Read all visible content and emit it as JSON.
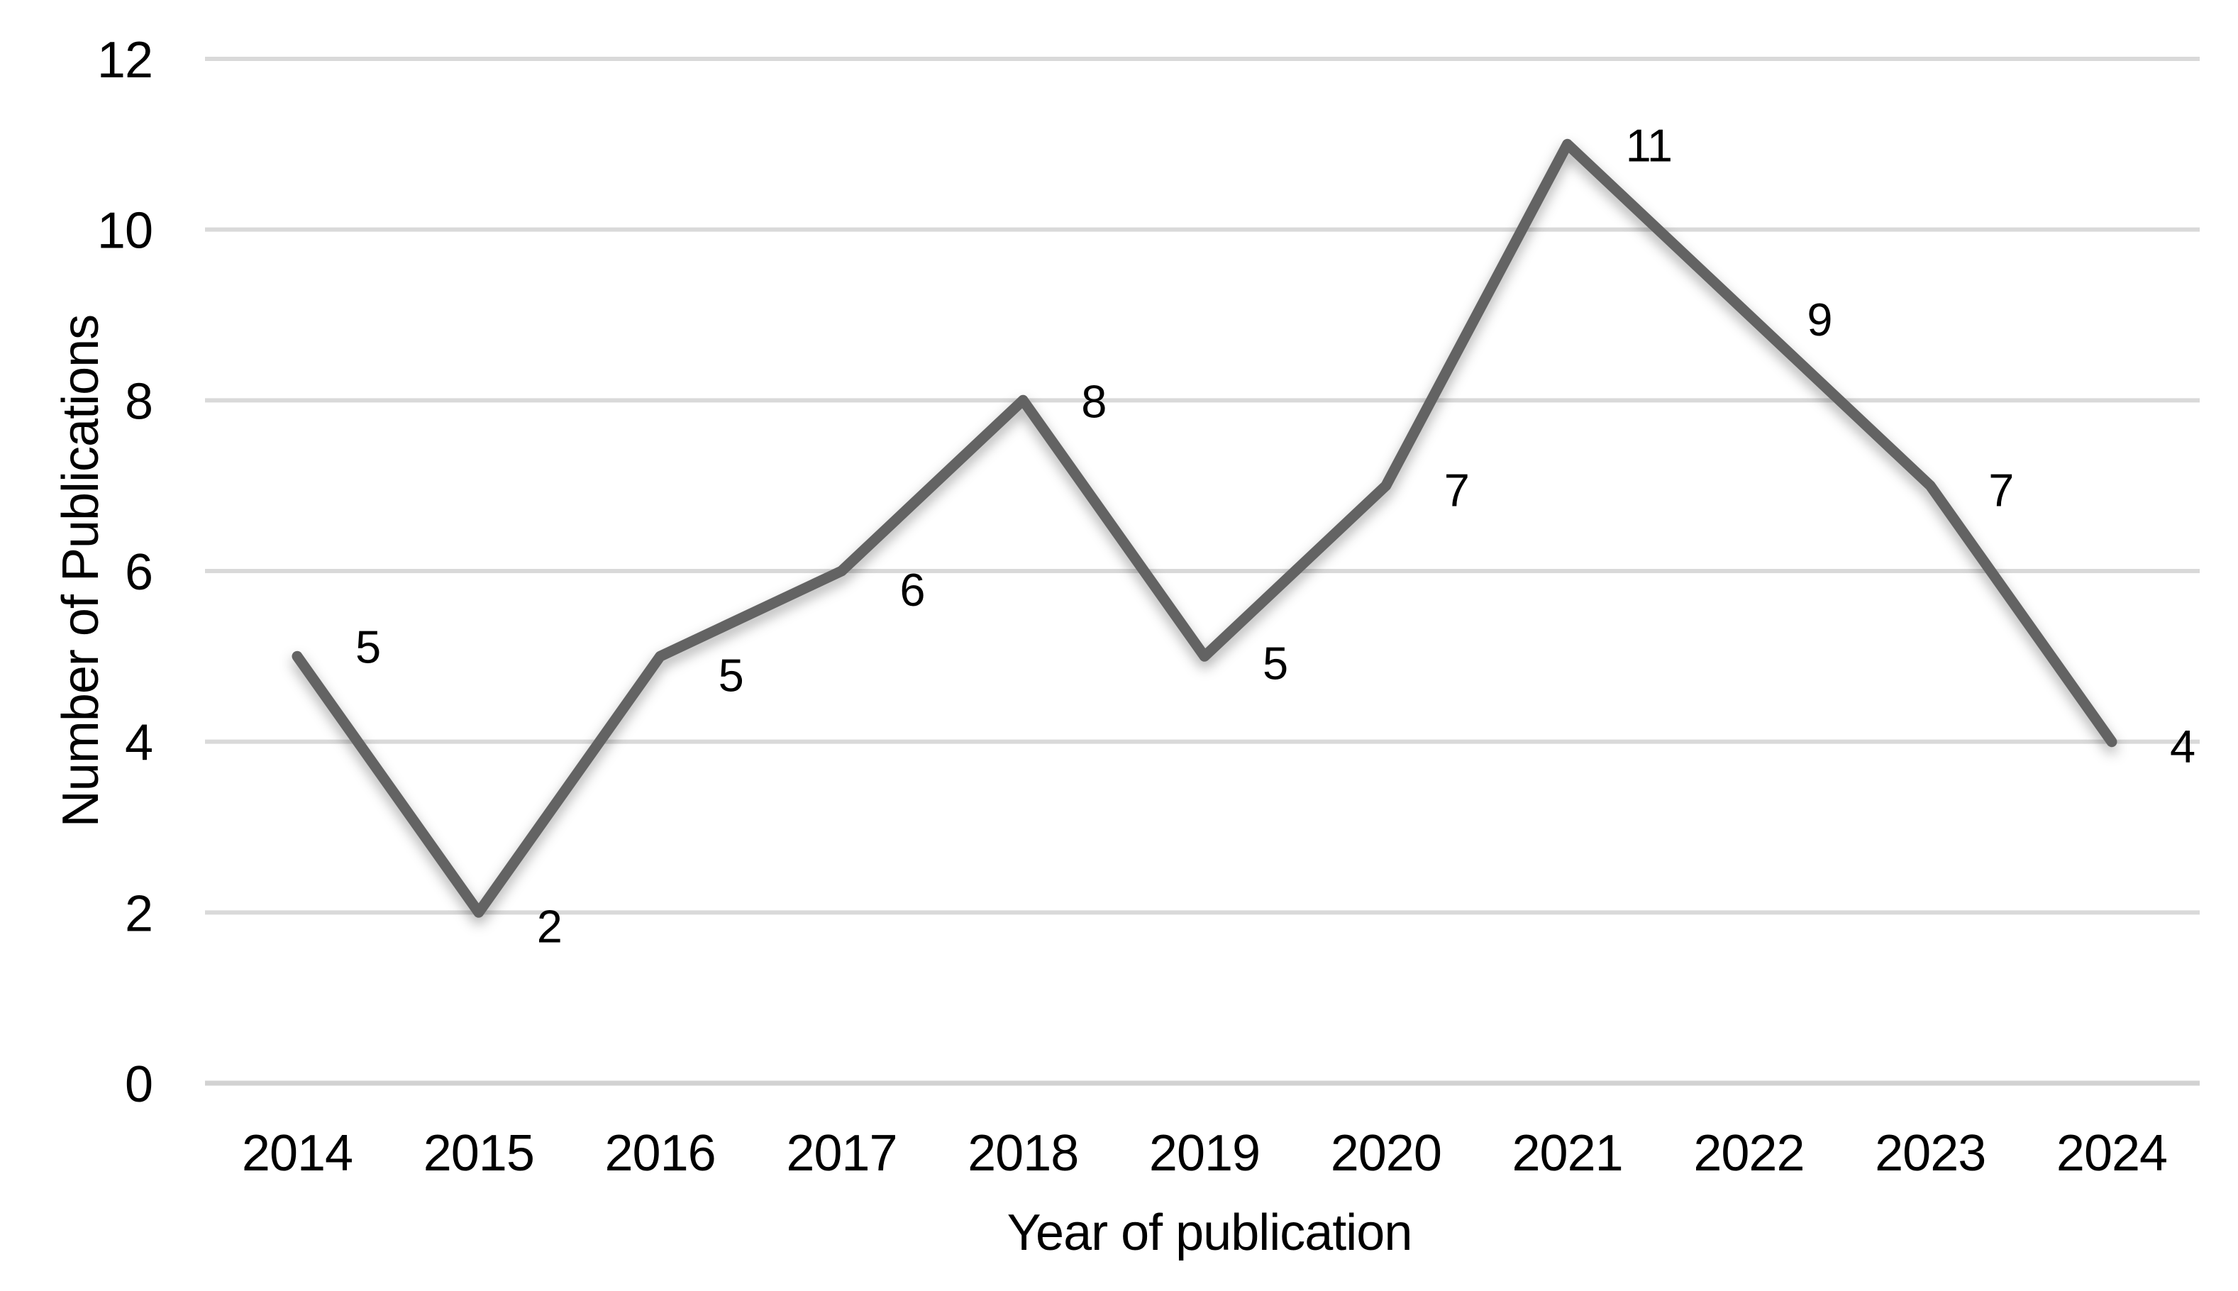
{
  "chart_data": {
    "type": "line",
    "title": "",
    "categories": [
      "2014",
      "2015",
      "2016",
      "2017",
      "2018",
      "2019",
      "2020",
      "2021",
      "2022",
      "2023",
      "2024"
    ],
    "values": [
      5,
      2,
      5,
      6,
      8,
      5,
      7,
      11,
      9,
      7,
      4
    ],
    "data_labels": [
      "5",
      "2",
      "5",
      "6",
      "8",
      "5",
      "7",
      "11",
      "9",
      "7",
      "4"
    ],
    "xlabel": "Year of publication",
    "ylabel": "Number of Publications",
    "ylim": [
      0,
      12
    ],
    "yticks": [
      0,
      2,
      4,
      6,
      8,
      10,
      12
    ],
    "grid": "horizontal",
    "legend": "none",
    "colors": {
      "line": "#646464",
      "gridline": "#d9d9d9",
      "axis_line": "#d2d2d2",
      "text": "#000000",
      "background": "#ffffff"
    }
  }
}
